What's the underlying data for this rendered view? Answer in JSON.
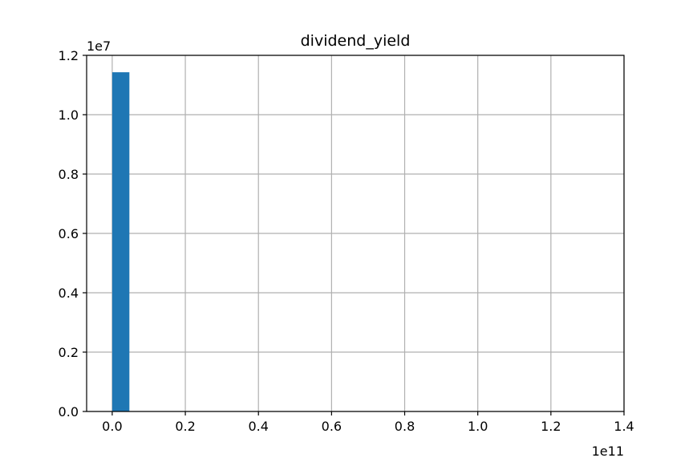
{
  "chart_data": {
    "type": "bar",
    "title": "dividend_yield",
    "xlabel": "",
    "ylabel": "",
    "x_offset_label": "1e11",
    "y_offset_label": "1e7",
    "xlim": [
      -0.07,
      1.4
    ],
    "ylim": [
      0,
      1.2
    ],
    "x_ticks": [
      0.0,
      0.2,
      0.4,
      0.6,
      0.8,
      1.0,
      1.2,
      1.4
    ],
    "x_tick_labels": [
      "0.0",
      "0.2",
      "0.4",
      "0.6",
      "0.8",
      "1.0",
      "1.2",
      "1.4"
    ],
    "y_ticks": [
      0.0,
      0.2,
      0.4,
      0.6,
      0.8,
      1.0,
      1.2
    ],
    "y_tick_labels": [
      "0.0",
      "0.2",
      "0.4",
      "0.6",
      "0.8",
      "1.0",
      "1.2"
    ],
    "grid": true,
    "bar_color": "#1f77b4",
    "bars": [
      {
        "x0": 0.0,
        "x1": 0.047,
        "value": 1.143
      }
    ]
  }
}
